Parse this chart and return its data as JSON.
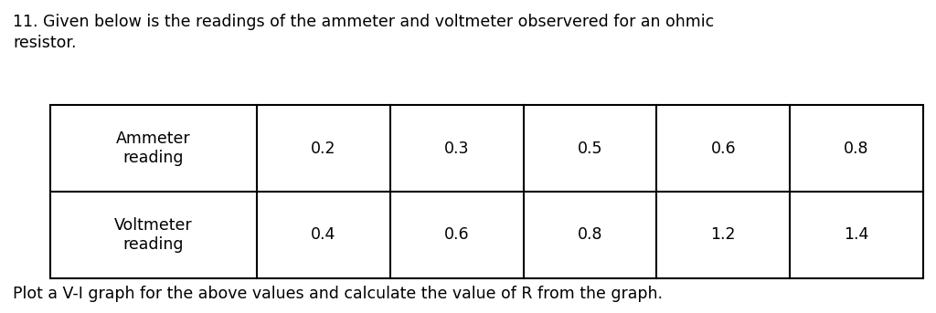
{
  "title_line1": "11. Given below is the readings of the ammeter and voltmeter observered for an ohmic",
  "title_line2": "resistor.",
  "row1_label": "Ammeter\nreading",
  "row2_label": "Voltmeter\nreading",
  "row1_values": [
    "0.2",
    "0.3",
    "0.5",
    "0.6",
    "0.8"
  ],
  "row2_values": [
    "0.4",
    "0.6",
    "0.8",
    "1.2",
    "1.4"
  ],
  "footer_text": "Plot a V-I graph for the above values and calculate the value of R from the graph.",
  "background_color": "#ffffff",
  "table_border_color": "#000000",
  "text_color": "#000000",
  "title_fontsize": 12.5,
  "table_fontsize": 12.5,
  "footer_fontsize": 12.5
}
